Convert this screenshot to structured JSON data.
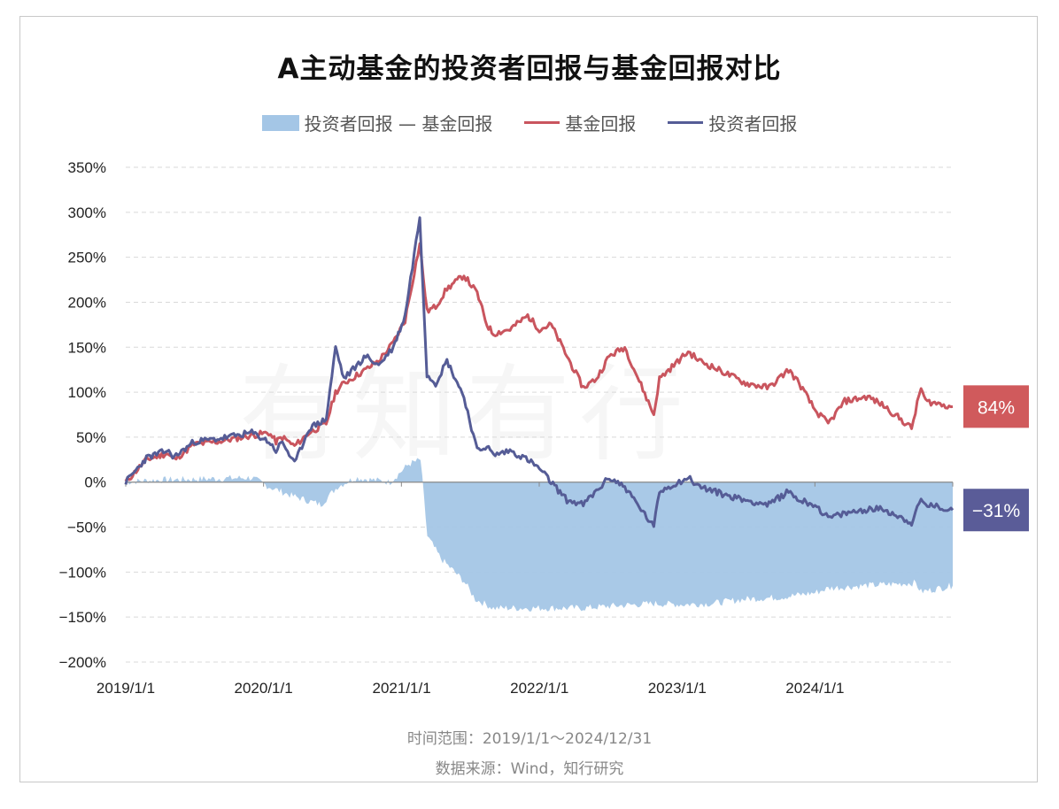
{
  "chart_data": {
    "type": "line",
    "title": "A主动基金的投资者回报与基金回报对比",
    "legend_position": "top",
    "grid": true,
    "y_ticks": [
      "350%",
      "300%",
      "250%",
      "200%",
      "150%",
      "100%",
      "50%",
      "0%",
      "−50%",
      "−100%",
      "−150%",
      "−200%"
    ],
    "x_ticks": [
      "2019/1/1",
      "2020/1/1",
      "2021/1/1",
      "2022/1/1",
      "2023/1/1",
      "2024/1/1"
    ],
    "ylim": [
      -200,
      350
    ],
    "x_range": [
      "2019-01-01",
      "2024-12-31"
    ],
    "series": [
      {
        "name": "投资者回报 — 基金回报",
        "style": "area",
        "color": "#a4c6e6",
        "x": [
          "2019-01-01",
          "2019-03-01",
          "2019-06-01",
          "2019-09-01",
          "2019-12-01",
          "2020-01-15",
          "2020-03-15",
          "2020-06-01",
          "2020-07-15",
          "2020-09-01",
          "2020-12-01",
          "2021-01-20",
          "2021-02-20",
          "2021-03-10",
          "2021-04-15",
          "2021-06-15",
          "2021-07-15",
          "2021-09-01",
          "2021-12-01",
          "2022-03-01",
          "2022-04-27",
          "2022-07-01",
          "2022-10-31",
          "2023-01-15",
          "2023-04-01",
          "2023-07-01",
          "2023-10-01",
          "2024-01-01",
          "2024-02-05",
          "2024-05-15",
          "2024-09-24",
          "2024-10-08",
          "2024-12-31"
        ],
        "values": [
          0,
          2,
          3,
          4,
          5,
          -5,
          -15,
          -25,
          -5,
          5,
          0,
          20,
          25,
          -60,
          -85,
          -110,
          -130,
          -140,
          -140,
          -140,
          -140,
          -138,
          -135,
          -136,
          -135,
          -130,
          -128,
          -123,
          -118,
          -115,
          -112,
          -122,
          -115
        ]
      },
      {
        "name": "基金回报",
        "style": "line",
        "color": "#c9555e",
        "x": [
          "2019-01-01",
          "2019-02-25",
          "2019-04-20",
          "2019-05-10",
          "2019-07-01",
          "2019-09-01",
          "2019-12-01",
          "2020-01-15",
          "2020-02-03",
          "2020-02-20",
          "2020-03-23",
          "2020-05-01",
          "2020-06-15",
          "2020-07-10",
          "2020-08-01",
          "2020-09-28",
          "2020-11-01",
          "2020-12-10",
          "2021-01-10",
          "2021-02-18",
          "2021-03-09",
          "2021-04-01",
          "2021-05-01",
          "2021-06-15",
          "2021-07-20",
          "2021-08-15",
          "2021-09-01",
          "2021-10-15",
          "2021-12-01",
          "2022-01-01",
          "2022-02-01",
          "2022-03-15",
          "2022-04-27",
          "2022-06-01",
          "2022-07-05",
          "2022-08-15",
          "2022-10-31",
          "2022-11-15",
          "2023-01-30",
          "2023-03-01",
          "2023-05-15",
          "2023-07-01",
          "2023-09-01",
          "2023-10-23",
          "2023-11-20",
          "2024-01-01",
          "2024-02-05",
          "2024-03-20",
          "2024-05-20",
          "2024-07-01",
          "2024-09-13",
          "2024-10-08",
          "2024-10-20",
          "2024-12-31"
        ],
        "values": [
          0,
          25,
          32,
          25,
          42,
          45,
          52,
          55,
          45,
          50,
          40,
          55,
          65,
          100,
          110,
          125,
          135,
          155,
          180,
          265,
          190,
          195,
          215,
          230,
          210,
          175,
          165,
          170,
          185,
          170,
          175,
          140,
          105,
          115,
          140,
          150,
          75,
          115,
          145,
          135,
          120,
          110,
          105,
          125,
          110,
          80,
          65,
          90,
          95,
          85,
          60,
          105,
          90,
          84
        ]
      },
      {
        "name": "投资者回报",
        "style": "line",
        "color": "#555c96",
        "x": [
          "2019-01-01",
          "2019-02-25",
          "2019-04-20",
          "2019-05-10",
          "2019-07-01",
          "2019-09-01",
          "2019-12-01",
          "2020-01-15",
          "2020-02-03",
          "2020-02-20",
          "2020-03-23",
          "2020-05-01",
          "2020-06-15",
          "2020-07-10",
          "2020-08-01",
          "2020-09-28",
          "2020-11-01",
          "2020-12-10",
          "2021-01-10",
          "2021-02-18",
          "2021-03-09",
          "2021-04-01",
          "2021-05-01",
          "2021-06-15",
          "2021-07-20",
          "2021-08-15",
          "2021-09-01",
          "2021-10-15",
          "2021-12-01",
          "2022-01-01",
          "2022-02-01",
          "2022-03-15",
          "2022-04-27",
          "2022-06-01",
          "2022-07-05",
          "2022-08-15",
          "2022-10-31",
          "2022-11-15",
          "2023-01-30",
          "2023-03-01",
          "2023-05-15",
          "2023-07-01",
          "2023-09-01",
          "2023-10-23",
          "2023-11-20",
          "2024-01-01",
          "2024-02-05",
          "2024-03-20",
          "2024-05-20",
          "2024-07-01",
          "2024-09-13",
          "2024-10-08",
          "2024-10-20",
          "2024-12-31"
        ],
        "values": [
          0,
          27,
          35,
          28,
          45,
          48,
          55,
          45,
          35,
          45,
          20,
          60,
          70,
          150,
          115,
          140,
          130,
          150,
          185,
          295,
          120,
          110,
          135,
          95,
          35,
          40,
          30,
          35,
          25,
          15,
          0,
          -20,
          -25,
          -10,
          5,
          -5,
          -50,
          -10,
          5,
          -5,
          -15,
          -20,
          -25,
          -10,
          -20,
          -25,
          -40,
          -35,
          -30,
          -30,
          -45,
          -20,
          -25,
          -31
        ]
      }
    ],
    "end_labels": [
      {
        "text": "84%",
        "color": "#d05a5c"
      },
      {
        "text": "−31%",
        "color": "#5a5c98"
      }
    ]
  },
  "legend": {
    "diff_label": "投资者回报 — 基金回报",
    "fund_label": "基金回报",
    "investor_label": "投资者回报"
  },
  "footer": {
    "range": "时间范围：2019/1/1～2024/12/31",
    "source": "数据来源：Wind，知行研究"
  },
  "watermark": "有知有行"
}
